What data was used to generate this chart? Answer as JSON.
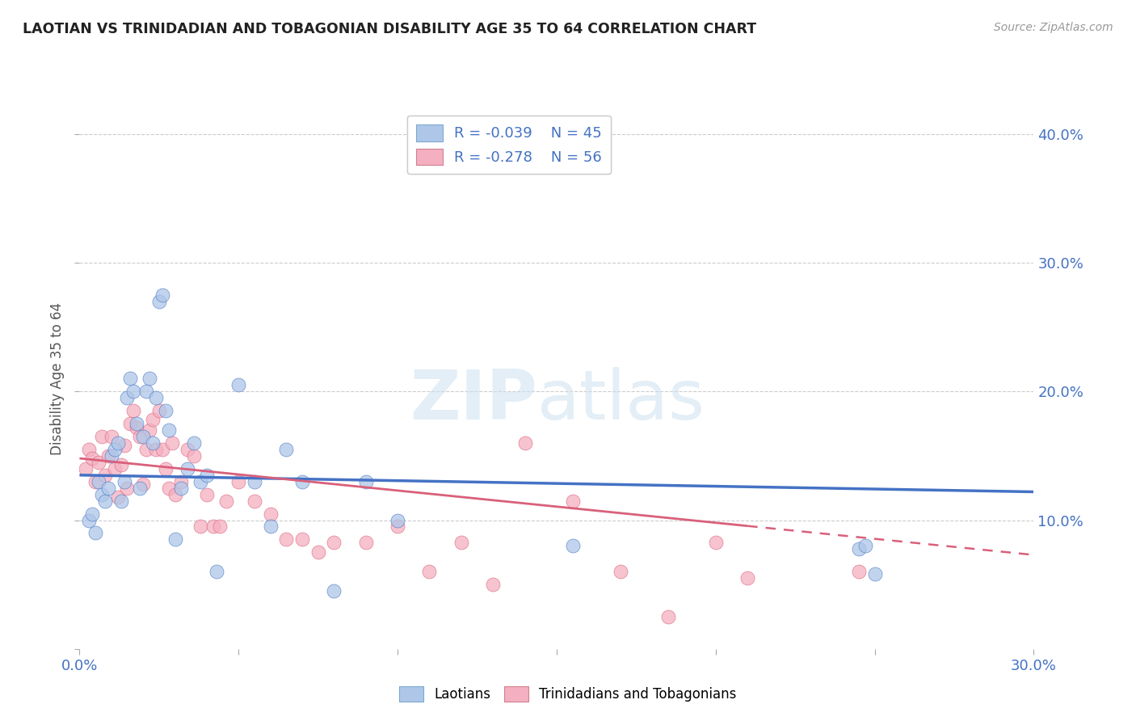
{
  "title": "LAOTIAN VS TRINIDADIAN AND TOBAGONIAN DISABILITY AGE 35 TO 64 CORRELATION CHART",
  "source": "Source: ZipAtlas.com",
  "ylabel": "Disability Age 35 to 64",
  "xlim": [
    0.0,
    0.3
  ],
  "ylim": [
    0.0,
    0.42
  ],
  "xticks": [
    0.0,
    0.05,
    0.1,
    0.15,
    0.2,
    0.25,
    0.3
  ],
  "yticks": [
    0.0,
    0.1,
    0.2,
    0.3,
    0.4
  ],
  "ytick_labels": [
    "",
    "10.0%",
    "20.0%",
    "30.0%",
    "40.0%"
  ],
  "xtick_labels": [
    "0.0%",
    "",
    "",
    "",
    "",
    "",
    "30.0%"
  ],
  "background_color": "#ffffff",
  "grid_color": "#cccccc",
  "legend_R1": "R = -0.039",
  "legend_N1": "N = 45",
  "legend_R2": "R = -0.278",
  "legend_N2": "N = 56",
  "color_blue": "#aec6e8",
  "color_pink": "#f4afc0",
  "color_blue_line": "#4472c4",
  "color_pink_line": "#d9607a",
  "color_text_blue": "#4472c4",
  "laotian_x": [
    0.003,
    0.004,
    0.005,
    0.006,
    0.007,
    0.008,
    0.009,
    0.01,
    0.011,
    0.012,
    0.013,
    0.014,
    0.015,
    0.016,
    0.017,
    0.018,
    0.019,
    0.02,
    0.021,
    0.022,
    0.023,
    0.024,
    0.025,
    0.026,
    0.027,
    0.028,
    0.03,
    0.032,
    0.034,
    0.036,
    0.038,
    0.04,
    0.043,
    0.05,
    0.055,
    0.06,
    0.065,
    0.07,
    0.08,
    0.09,
    0.1,
    0.155,
    0.245,
    0.247,
    0.25
  ],
  "laotian_y": [
    0.1,
    0.105,
    0.09,
    0.13,
    0.12,
    0.115,
    0.125,
    0.15,
    0.155,
    0.16,
    0.115,
    0.13,
    0.195,
    0.21,
    0.2,
    0.175,
    0.125,
    0.165,
    0.2,
    0.21,
    0.16,
    0.195,
    0.27,
    0.275,
    0.185,
    0.17,
    0.085,
    0.125,
    0.14,
    0.16,
    0.13,
    0.135,
    0.06,
    0.205,
    0.13,
    0.095,
    0.155,
    0.13,
    0.045,
    0.13,
    0.1,
    0.08,
    0.078,
    0.08,
    0.058
  ],
  "trinidadian_x": [
    0.002,
    0.003,
    0.004,
    0.005,
    0.006,
    0.007,
    0.008,
    0.009,
    0.01,
    0.011,
    0.012,
    0.013,
    0.014,
    0.015,
    0.016,
    0.017,
    0.018,
    0.019,
    0.02,
    0.021,
    0.022,
    0.023,
    0.024,
    0.025,
    0.026,
    0.027,
    0.028,
    0.029,
    0.03,
    0.032,
    0.034,
    0.036,
    0.038,
    0.04,
    0.042,
    0.044,
    0.046,
    0.05,
    0.055,
    0.06,
    0.065,
    0.07,
    0.075,
    0.08,
    0.09,
    0.1,
    0.11,
    0.12,
    0.13,
    0.14,
    0.155,
    0.17,
    0.185,
    0.2,
    0.21,
    0.245
  ],
  "trinidadian_y": [
    0.14,
    0.155,
    0.148,
    0.13,
    0.145,
    0.165,
    0.135,
    0.15,
    0.165,
    0.14,
    0.118,
    0.143,
    0.158,
    0.125,
    0.175,
    0.185,
    0.172,
    0.165,
    0.128,
    0.155,
    0.17,
    0.178,
    0.155,
    0.185,
    0.155,
    0.14,
    0.125,
    0.16,
    0.12,
    0.13,
    0.155,
    0.15,
    0.095,
    0.12,
    0.095,
    0.095,
    0.115,
    0.13,
    0.115,
    0.105,
    0.085,
    0.085,
    0.075,
    0.083,
    0.083,
    0.095,
    0.06,
    0.083,
    0.05,
    0.16,
    0.115,
    0.06,
    0.025,
    0.083,
    0.055,
    0.06
  ],
  "lao_trend_x0": 0.0,
  "lao_trend_y0": 0.135,
  "lao_trend_x1": 0.3,
  "lao_trend_y1": 0.122,
  "tri_trend_x0": 0.0,
  "tri_trend_y0": 0.148,
  "tri_trend_x1": 0.3,
  "tri_trend_y1": 0.073
}
